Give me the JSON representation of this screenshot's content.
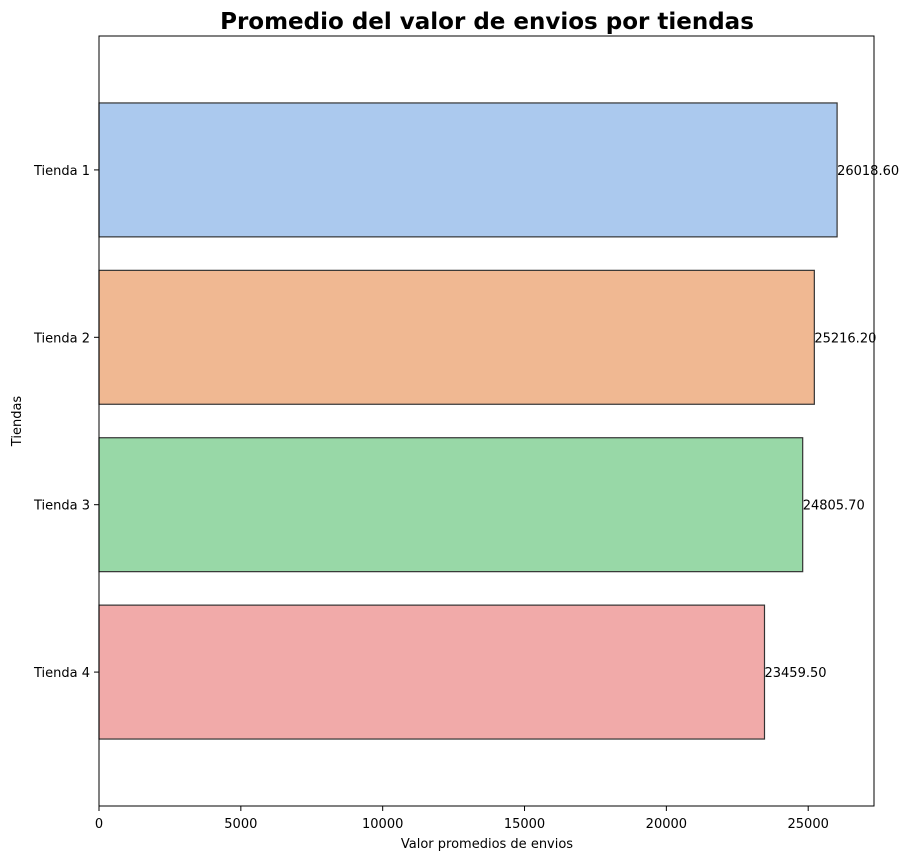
{
  "chart_data": {
    "type": "bar",
    "orientation": "horizontal",
    "title": "Promedio del valor de envios por tiendas",
    "xlabel": "Valor promedios de envios",
    "ylabel": "Tiendas",
    "categories": [
      "Tienda 1",
      "Tienda 2",
      "Tienda 3",
      "Tienda 4"
    ],
    "values": [
      26018.6,
      25216.2,
      24805.7,
      23459.5
    ],
    "value_labels": [
      "26018.60",
      "25216.20",
      "24805.70",
      "23459.50"
    ],
    "colors": [
      "#abc9ee",
      "#f0b892",
      "#98d8a7",
      "#f1aaa9"
    ],
    "edge_color": "#333333",
    "xlim": [
      0,
      27319.53
    ],
    "x_ticks": [
      0,
      5000,
      10000,
      15000,
      20000,
      25000
    ],
    "x_tick_labels": [
      "0",
      "5000",
      "10000",
      "15000",
      "20000",
      "25000"
    ],
    "grid": false,
    "legend": "none"
  }
}
